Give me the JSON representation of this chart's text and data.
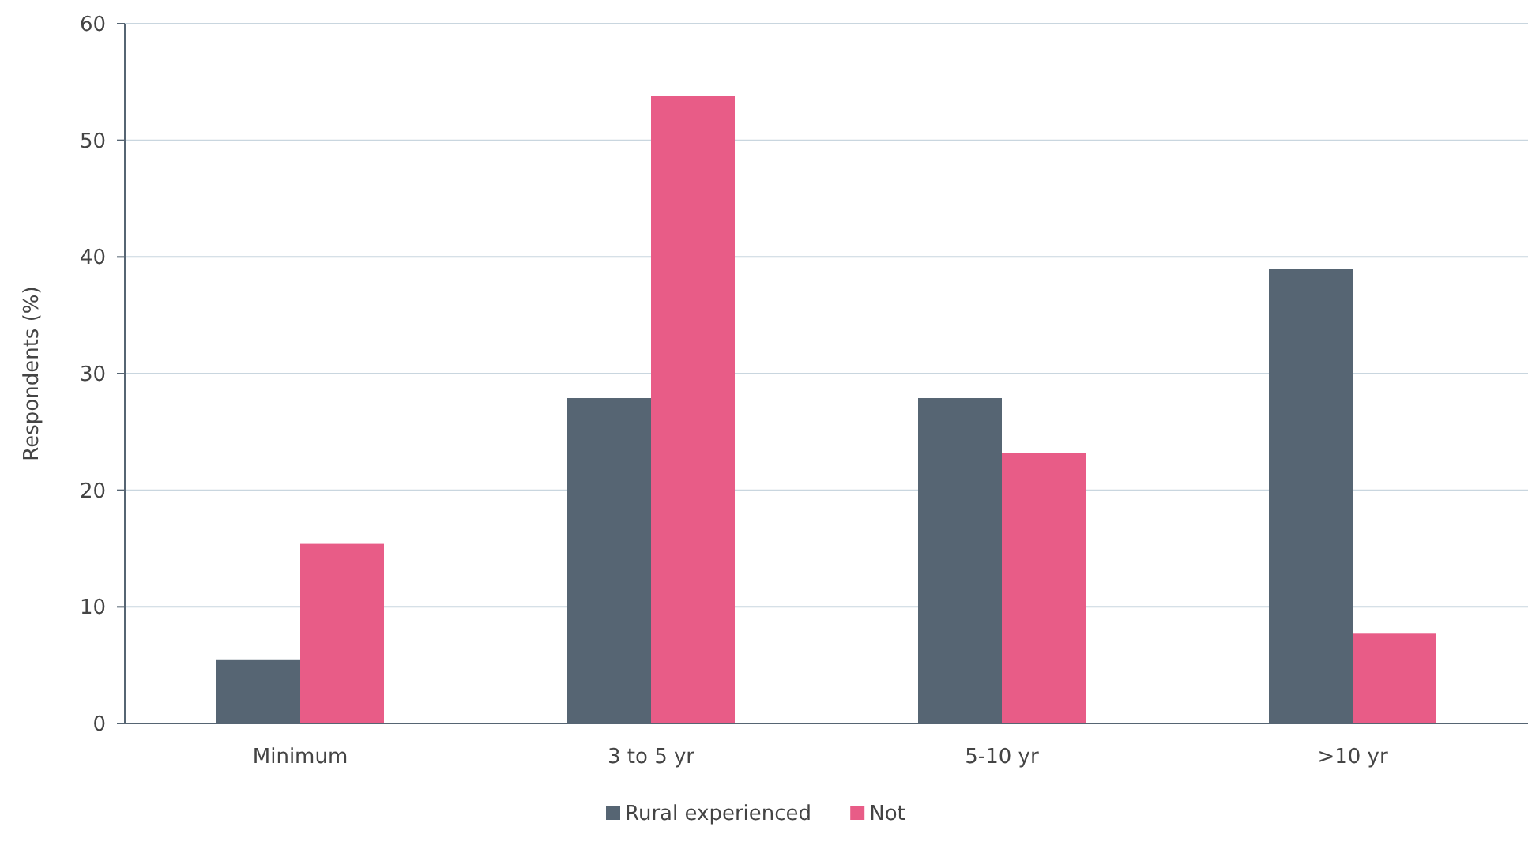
{
  "chart_data": {
    "type": "bar",
    "ylabel": "Respondents (%)",
    "categories": [
      "Minimum",
      "3 to 5 yr",
      "5-10 yr",
      ">10 yr"
    ],
    "series": [
      {
        "name": "Rural experienced",
        "color": "#566573",
        "values": [
          5.5,
          27.9,
          27.9,
          39.0
        ]
      },
      {
        "name": "Not",
        "color": "#e85c87",
        "values": [
          15.4,
          53.8,
          23.2,
          7.7
        ]
      }
    ],
    "ylim": [
      0,
      60
    ],
    "yticks": [
      0,
      10,
      20,
      30,
      40,
      50,
      60
    ],
    "grid": "y",
    "legend": "bottom"
  }
}
